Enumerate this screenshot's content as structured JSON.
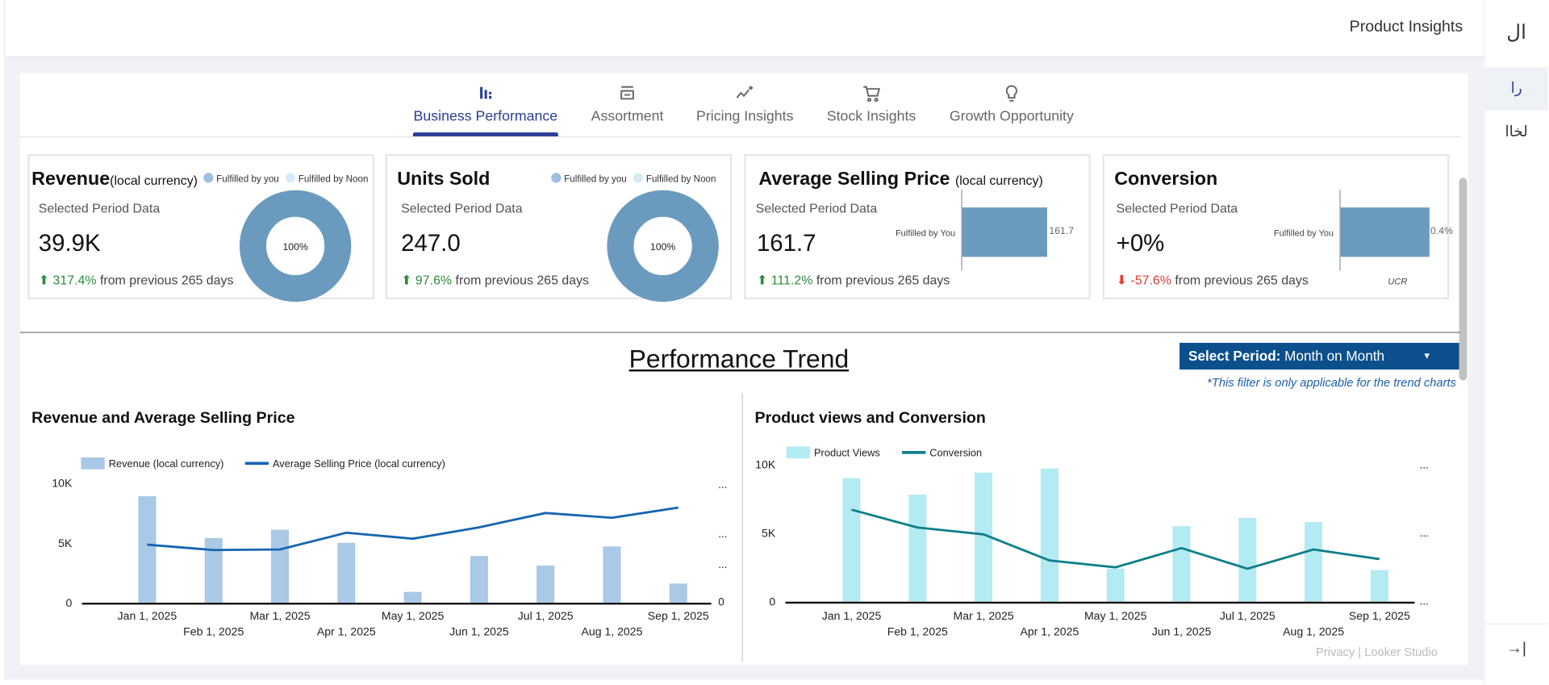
{
  "header": {
    "title": "Product Insights"
  },
  "rail": {
    "top": "ال",
    "items": [
      "را",
      "لخاا"
    ],
    "collapse_icon": "→|"
  },
  "tabs": [
    {
      "label": "Business Performance",
      "icon": "bar-chart-icon",
      "active": true
    },
    {
      "label": "Assortment",
      "icon": "store-icon"
    },
    {
      "label": "Pricing Insights",
      "icon": "trend-sparkle-icon"
    },
    {
      "label": "Stock Insights",
      "icon": "cart-icon"
    },
    {
      "label": "Growth Opportunity",
      "icon": "lightbulb-icon"
    }
  ],
  "kpis": [
    {
      "title": "Revenue",
      "subtitle": "(local currency)",
      "period": "Selected Period Data",
      "value": "39.9K",
      "change": "317.4%",
      "change_text": "from previous 265 days",
      "direction": "up",
      "legend": [
        "Fulfilled by you",
        "Fulfilled by Noon"
      ],
      "donut_label": "100%"
    },
    {
      "title": "Units Sold",
      "period": "Selected Period Data",
      "value": "247.0",
      "change": "97.6%",
      "change_text": "from previous 265 days",
      "direction": "up",
      "legend": [
        "Fulfilled by you",
        "Fulfilled by Noon"
      ],
      "donut_label": "100%"
    },
    {
      "title": "Average Selling Price",
      "subtitle": "(local currency)",
      "period": "Selected Period Data",
      "value": "161.7",
      "change": "111.2%",
      "change_text": "from previous 265 days",
      "direction": "up",
      "bar_label": "Fulfilled by You",
      "bar_value": "161.7"
    },
    {
      "title": "Conversion",
      "period": "Selected Period Data",
      "value": "+0%",
      "change": "-57.6%",
      "change_text": "from previous 265 days",
      "direction": "down",
      "bar_label": "Fulfilled by You",
      "bar_value": "0.4%",
      "axis_label": "UCR"
    }
  ],
  "trend": {
    "title": "Performance Trend",
    "select_label": "Select Period:",
    "select_value": "Month on Month",
    "note": "*This filter is only applicable for the trend charts"
  },
  "footer": {
    "privacy": "Privacy",
    "sep": "|",
    "brand": "Looker Studio"
  },
  "colors": {
    "accent": "#2b3d97",
    "bar1": "#a9c9e6",
    "line1": "#1565b0",
    "bar2": "#b3ebf2",
    "line2": "#0e7f8a",
    "kpi": "#6a9bbf",
    "select": "#0b4f8c"
  },
  "chart_data": [
    {
      "type": "bar+line",
      "title": "Revenue and Average Selling Price",
      "categories": [
        "Jan 1, 2025",
        "Feb 1, 2025",
        "Mar 1, 2025",
        "Apr 1, 2025",
        "May 1, 2025",
        "Jun 1, 2025",
        "Jul 1, 2025",
        "Aug 1, 2025",
        "Sep 1, 2025"
      ],
      "series": [
        {
          "name": "Revenue (local currency)",
          "type": "bar",
          "axis": "left",
          "values": [
            8900,
            5400,
            6100,
            5000,
            900,
            3900,
            3100,
            4700,
            1600
          ]
        },
        {
          "name": "Average Selling Price (local currency)",
          "type": "line",
          "axis": "right",
          "values": [
            97,
            88,
            89,
            117,
            107,
            126,
            150,
            142,
            159
          ]
        }
      ],
      "y_ticks": [
        "0",
        "5K",
        "10K"
      ],
      "ylim": [
        0,
        10000
      ],
      "y2lim": [
        0,
        200
      ],
      "y2_ticks": [
        "0",
        "...",
        "...",
        "..."
      ]
    },
    {
      "type": "bar+line",
      "title": "Product views and Conversion",
      "categories": [
        "Jan 1, 2025",
        "Feb 1, 2025",
        "Mar 1, 2025",
        "Apr 1, 2025",
        "May 1, 2025",
        "Jun 1, 2025",
        "Jul 1, 2025",
        "Aug 1, 2025",
        "Sep 1, 2025"
      ],
      "series": [
        {
          "name": "Product Views",
          "type": "bar",
          "axis": "left",
          "values": [
            9000,
            7800,
            9400,
            9700,
            2400,
            5500,
            6100,
            5800,
            2300
          ]
        },
        {
          "name": "Conversion",
          "type": "line",
          "axis": "right",
          "values": [
            0.67,
            0.54,
            0.49,
            0.3,
            0.25,
            0.39,
            0.24,
            0.38,
            0.31
          ]
        }
      ],
      "y_ticks": [
        "0",
        "5K",
        "10K"
      ],
      "ylim": [
        0,
        10000
      ],
      "y2lim": [
        0,
        1
      ],
      "y2_ticks": [
        "...",
        "...",
        "..."
      ]
    }
  ]
}
